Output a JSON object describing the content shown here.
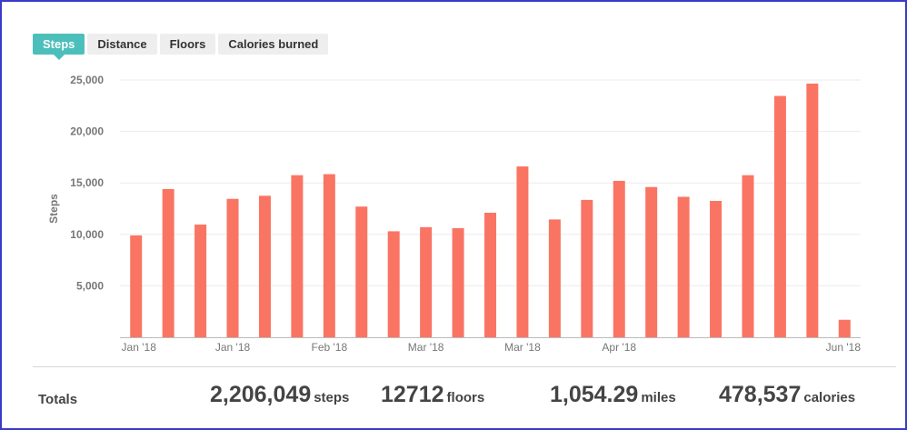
{
  "tabs": [
    {
      "label": "Steps",
      "active": true
    },
    {
      "label": "Distance",
      "active": false
    },
    {
      "label": "Floors",
      "active": false
    },
    {
      "label": "Calories burned",
      "active": false
    }
  ],
  "colors": {
    "bar": "#fa7463",
    "accent": "#4cbfbb",
    "grid": "#ebebeb"
  },
  "chart_data": {
    "type": "bar",
    "ylabel": "Steps",
    "ylim": [
      0,
      25000
    ],
    "yticks": [
      5000,
      10000,
      15000,
      20000,
      25000
    ],
    "ytick_labels": [
      "5,000",
      "10,000",
      "15,000",
      "20,000",
      "25,000"
    ],
    "xtick_labels": [
      "Jan '18",
      "Jan '18",
      "Feb '18",
      "Mar '18",
      "Mar '18",
      "Apr '18",
      "Jun '18"
    ],
    "values": [
      9900,
      14400,
      10950,
      13450,
      13750,
      15750,
      15850,
      12700,
      10300,
      10700,
      10600,
      12100,
      16600,
      11450,
      13350,
      15200,
      14600,
      13650,
      13250,
      15750,
      23450,
      24650,
      1700
    ],
    "grid": true,
    "legend": "none"
  },
  "totals": {
    "label": "Totals",
    "items": [
      {
        "value": "2,206,049",
        "unit": "steps"
      },
      {
        "value": "12712",
        "unit": "floors"
      },
      {
        "value": "1,054.29",
        "unit": "miles"
      },
      {
        "value": "478,537",
        "unit": "calories"
      }
    ]
  }
}
